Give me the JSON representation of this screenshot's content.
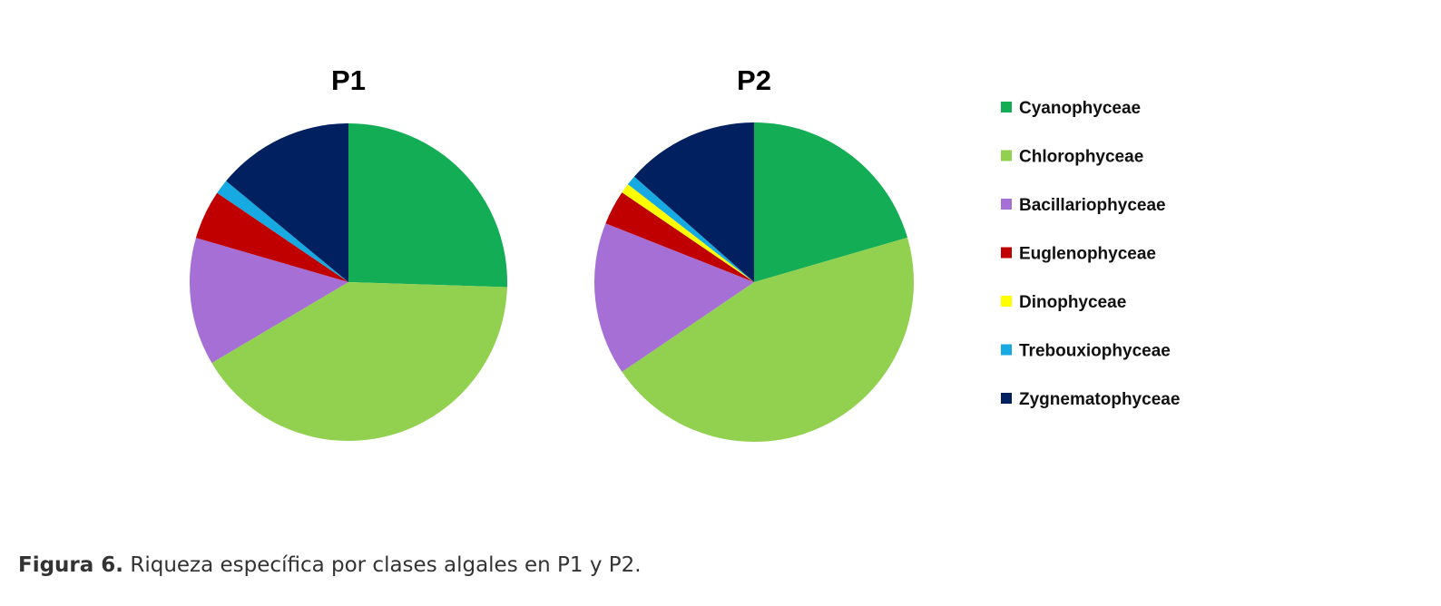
{
  "chart_data": [
    {
      "type": "pie",
      "title": "P1",
      "categories": [
        "Cyanophyceae",
        "Chlorophyceae",
        "Bacillariophyceae",
        "Euglenophyceae",
        "Dinophyceae",
        "Trebouxiophyceae",
        "Zygnematophyceae"
      ],
      "values": [
        25.5,
        41.0,
        13.0,
        5.0,
        0.0,
        1.5,
        14.0
      ],
      "colors": [
        "#12ad55",
        "#92d050",
        "#a66fd6",
        "#c00000",
        "#ffff00",
        "#17a9e1",
        "#002060"
      ]
    },
    {
      "type": "pie",
      "title": "P2",
      "categories": [
        "Cyanophyceae",
        "Chlorophyceae",
        "Bacillariophyceae",
        "Euglenophyceae",
        "Dinophyceae",
        "Trebouxiophyceae",
        "Zygnematophyceae"
      ],
      "values": [
        20.5,
        45.0,
        15.5,
        3.5,
        1.0,
        1.0,
        13.5
      ],
      "colors": [
        "#12ad55",
        "#92d050",
        "#a66fd6",
        "#c00000",
        "#ffff00",
        "#17a9e1",
        "#002060"
      ]
    }
  ],
  "legend": {
    "placement": "right",
    "items": [
      {
        "label": "Cyanophyceae",
        "color": "#12ad55"
      },
      {
        "label": "Chlorophyceae",
        "color": "#92d050"
      },
      {
        "label": "Bacillariophyceae",
        "color": "#a66fd6"
      },
      {
        "label": "Euglenophyceae",
        "color": "#c00000"
      },
      {
        "label": "Dinophyceae",
        "color": "#ffff00"
      },
      {
        "label": "Trebouxiophyceae",
        "color": "#17a9e1"
      },
      {
        "label": "Zygnematophyceae",
        "color": "#002060"
      }
    ]
  },
  "caption": {
    "label": "Figura 6.",
    "text": " Riqueza específica por clases algales en P1 y P2."
  }
}
